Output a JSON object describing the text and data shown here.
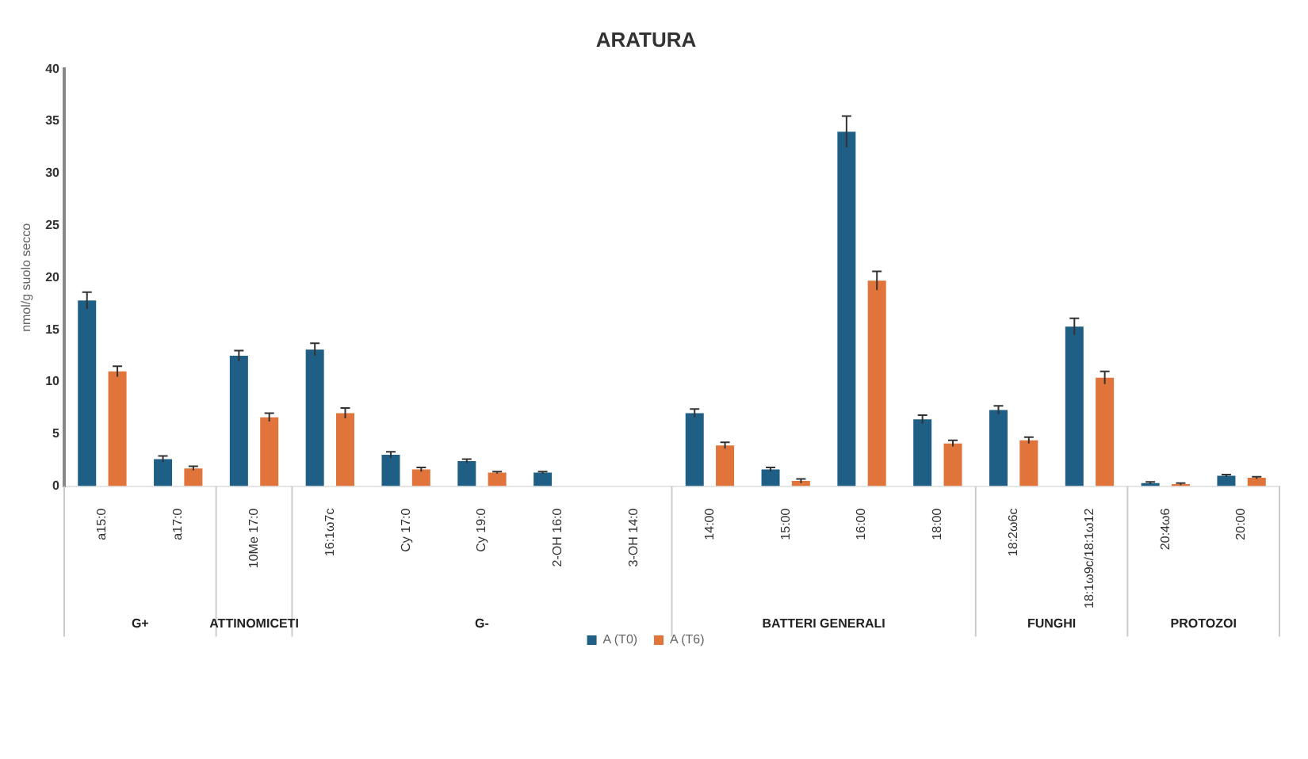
{
  "chart_data": {
    "type": "bar",
    "title": "ARATURA",
    "ylabel": "nmol/g suolo secco",
    "categories": [
      "a15:0",
      "a17:0",
      "10Me 17:0",
      "16:1ω7c",
      "Cy 17:0",
      "Cy 19:0",
      "2-OH 16:0",
      "3-OH 14:0",
      "14:00",
      "15:00",
      "16:00",
      "18:00",
      "18:2ω6c",
      "18:1ω9c/18:1ω12",
      "20:4ω6",
      "20:00"
    ],
    "series": [
      {
        "name": "A (T0)",
        "color": "#1f5f85",
        "values": [
          17.8,
          2.6,
          12.5,
          13.1,
          3.0,
          2.4,
          1.3,
          null,
          7.0,
          1.6,
          34.0,
          6.4,
          7.3,
          15.3,
          0.3,
          1.0
        ],
        "errors": [
          0.8,
          0.3,
          0.5,
          0.6,
          0.3,
          0.2,
          0.1,
          null,
          0.4,
          0.2,
          1.5,
          0.4,
          0.4,
          0.8,
          0.1,
          0.1
        ]
      },
      {
        "name": "A (T6)",
        "color": "#e0743a",
        "values": [
          11.0,
          1.7,
          6.6,
          7.0,
          1.6,
          1.3,
          null,
          null,
          3.9,
          0.5,
          19.7,
          4.1,
          4.4,
          10.4,
          0.2,
          0.8
        ],
        "errors": [
          0.5,
          0.2,
          0.4,
          0.5,
          0.2,
          0.1,
          null,
          null,
          0.3,
          0.2,
          0.9,
          0.3,
          0.3,
          0.6,
          0.1,
          0.1
        ]
      }
    ],
    "annotations": [
      "G+",
      "ATTINOMICETI",
      "G-",
      "BATTERI GENERALI",
      "FUNGHI",
      "PROTOZOI"
    ],
    "ylim": [
      0,
      40
    ],
    "yticks": [
      0,
      5,
      10,
      15,
      20,
      25,
      30,
      35,
      40
    ],
    "grid": false,
    "legend": "bottom"
  }
}
